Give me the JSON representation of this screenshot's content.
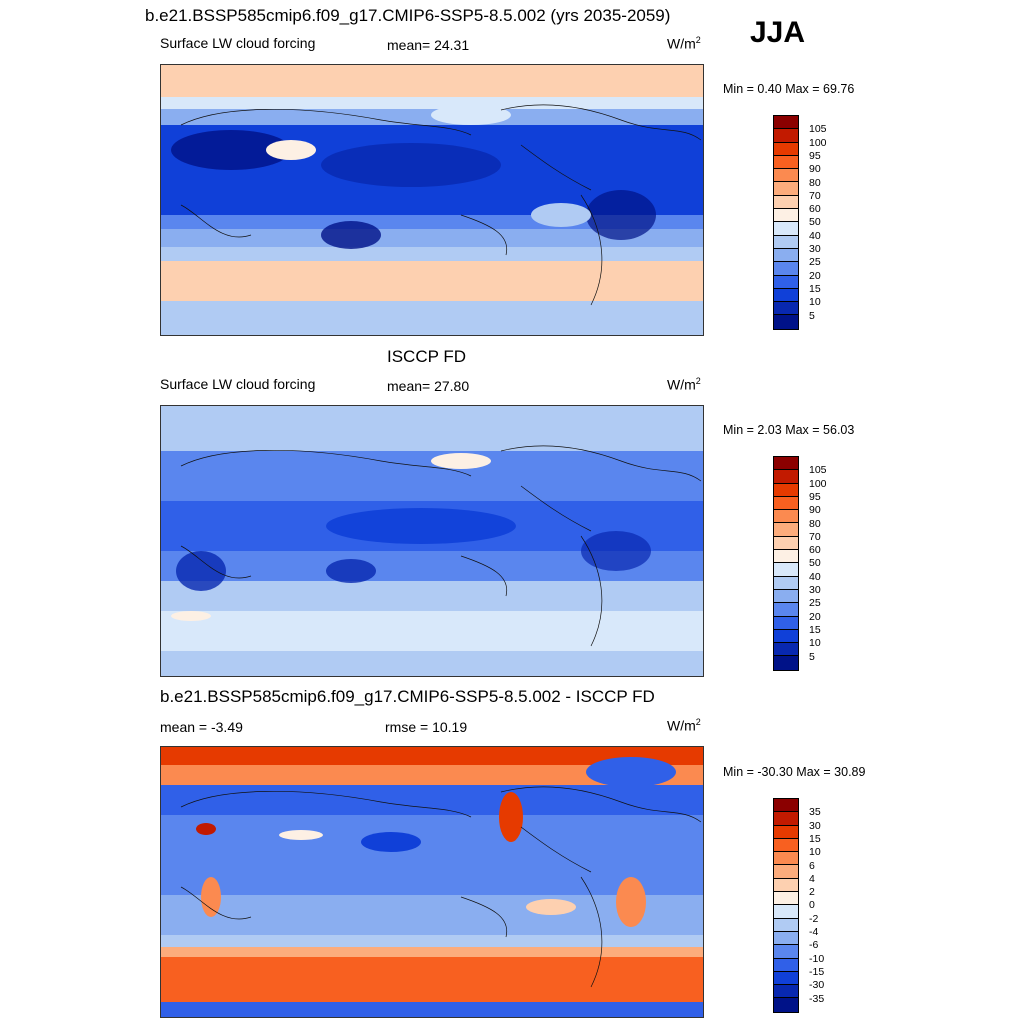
{
  "season": "JJA",
  "panels": [
    {
      "title": "b.e21.BSSP585cmip6.f09_g17.CMIP6-SSP5-8.5.002 (yrs 2035-2059)",
      "left_label": "Surface LW cloud forcing",
      "mid_label": "mean=  24.31",
      "units_base": "W/m",
      "units_exp": "2",
      "minmax": "Min =   0.40 Max =  69.76",
      "colorbar": {
        "colors": [
          "#8b0000",
          "#c21a00",
          "#e63a00",
          "#f86020",
          "#fb8a50",
          "#fcac7c",
          "#fdd0b0",
          "#fdf0e4",
          "#d8e8fa",
          "#b0cbf3",
          "#8aaef0",
          "#5a86ee",
          "#3060e8",
          "#1040d8",
          "#0828b0",
          "#001288"
        ],
        "labels": [
          "105",
          "100",
          "95",
          "90",
          "80",
          "70",
          "60",
          "50",
          "40",
          "30",
          "25",
          "20",
          "15",
          "10",
          "5"
        ]
      }
    },
    {
      "title": "ISCCP FD",
      "left_label": "Surface LW cloud forcing",
      "mid_label": "mean=  27.80",
      "units_base": "W/m",
      "units_exp": "2",
      "minmax": "Min =   2.03 Max =  56.03",
      "colorbar": {
        "colors": [
          "#8b0000",
          "#c21a00",
          "#e63a00",
          "#f86020",
          "#fb8a50",
          "#fcac7c",
          "#fdd0b0",
          "#fdf0e4",
          "#d8e8fa",
          "#b0cbf3",
          "#8aaef0",
          "#5a86ee",
          "#3060e8",
          "#1040d8",
          "#0828b0",
          "#001288"
        ],
        "labels": [
          "105",
          "100",
          "95",
          "90",
          "80",
          "70",
          "60",
          "50",
          "40",
          "30",
          "25",
          "20",
          "15",
          "10",
          "5"
        ]
      }
    },
    {
      "title": "b.e21.BSSP585cmip6.f09_g17.CMIP6-SSP5-8.5.002 - ISCCP FD",
      "left_label": "mean =  -3.49",
      "mid_label": "rmse =  10.19",
      "units_base": "W/m",
      "units_exp": "2",
      "minmax": "Min = -30.30 Max =  30.89",
      "colorbar": {
        "colors": [
          "#8b0000",
          "#c21a00",
          "#e63a00",
          "#f86020",
          "#fb8a50",
          "#fcac7c",
          "#fdd0b0",
          "#fdf0e4",
          "#d8e8fa",
          "#b0cbf3",
          "#8aaef0",
          "#5a86ee",
          "#3060e8",
          "#1040d8",
          "#0828b0",
          "#001288"
        ],
        "labels": [
          "35",
          "30",
          "15",
          "10",
          "6",
          "4",
          "2",
          "0",
          "-2",
          "-4",
          "-6",
          "-10",
          "-15",
          "-30",
          "-35"
        ]
      }
    }
  ]
}
